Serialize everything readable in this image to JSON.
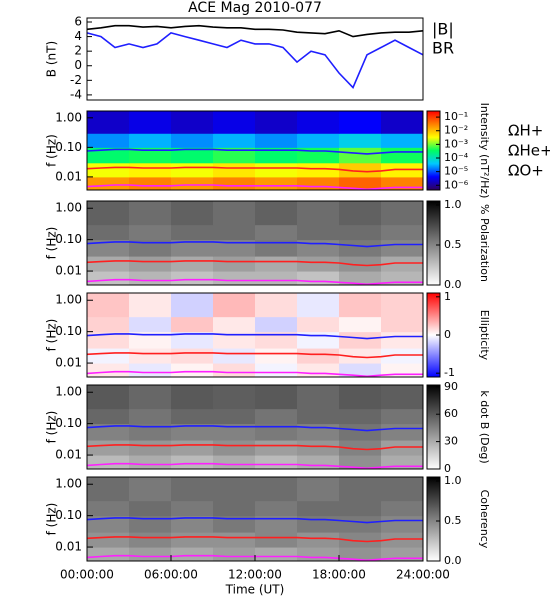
{
  "chart_data": [
    {
      "type": "line",
      "title": "ACE Mag 2010-077",
      "ylabel": "B (nT)",
      "x": [
        0,
        1,
        2,
        3,
        4,
        5,
        6,
        7,
        8,
        9,
        10,
        11,
        12,
        13,
        14,
        15,
        16,
        17,
        18,
        19,
        20,
        21,
        22,
        23,
        24
      ],
      "xlim": [
        0,
        24
      ],
      "ylim": [
        -4.7,
        6.55
      ],
      "yticks": [
        -4,
        -2,
        0,
        2,
        4,
        6
      ],
      "series": [
        {
          "name": "|B|",
          "color": "#000000",
          "values": [
            5.0,
            5.2,
            5.5,
            5.5,
            5.3,
            5.4,
            5.2,
            5.4,
            5.5,
            5.3,
            5.2,
            5.2,
            5.0,
            5.0,
            4.9,
            4.6,
            4.5,
            4.4,
            4.8,
            4.0,
            4.3,
            4.5,
            4.6,
            4.6,
            4.8
          ]
        },
        {
          "name": "BR",
          "color": "#1f1fff",
          "values": [
            4.5,
            4.0,
            2.5,
            3.0,
            2.5,
            3.0,
            4.5,
            4.0,
            3.5,
            3.0,
            2.5,
            3.5,
            3.0,
            3.0,
            2.5,
            0.5,
            2.0,
            1.5,
            -1.0,
            -3.0,
            1.5,
            2.5,
            3.5,
            2.5,
            1.5
          ]
        }
      ]
    },
    {
      "type": "heatmap",
      "ylabel": "f (Hz)",
      "log_y": true,
      "ylim": [
        0.0036,
        1.7
      ],
      "yticks": [
        {
          "value": 1,
          "label": "1.00"
        },
        {
          "value": 0.1,
          "label": "0.10"
        },
        {
          "value": 0.01,
          "label": "0.01"
        }
      ],
      "x_edges": [
        0,
        3,
        6,
        9,
        12,
        15,
        18,
        21,
        24
      ],
      "y_edges": [
        0.0036,
        0.01,
        0.03,
        0.1,
        0.3,
        1.7
      ],
      "z": [
        [
          0.02,
          0.03,
          0.02,
          0.03,
          0.02,
          0.03,
          0.05,
          0.03
        ],
        [
          0.003,
          0.004,
          0.003,
          0.005,
          0.003,
          0.004,
          0.008,
          0.004
        ],
        [
          0.0003,
          0.0004,
          0.0003,
          0.0005,
          0.0003,
          0.0004,
          0.0008,
          0.0004
        ],
        [
          2e-05,
          3e-05,
          2e-05,
          3e-05,
          2e-05,
          3e-05,
          5e-05,
          3e-05
        ],
        [
          2e-06,
          3e-06,
          2e-06,
          3e-06,
          2e-06,
          3e-06,
          4e-06,
          2e-06
        ]
      ],
      "colorbar": {
        "label": "Intensity (nT²/Hz)",
        "log": true,
        "lim": [
          4.5e-07,
          0.28
        ],
        "ticks": [
          {
            "value": 0.1,
            "label": "10⁻¹"
          },
          {
            "value": 0.01,
            "label": "10⁻²"
          },
          {
            "value": 0.001,
            "label": "10⁻³"
          },
          {
            "value": 0.0001,
            "label": "10⁻⁴"
          },
          {
            "value": 1e-05,
            "label": "10⁻⁵"
          },
          {
            "value": 1e-06,
            "label": "10⁻⁶"
          }
        ],
        "colormap": [
          "#30005a",
          "#0000ff",
          "#00c8ff",
          "#00ff60",
          "#ffff00",
          "#ff8000",
          "#ff0000"
        ]
      },
      "series": [
        {
          "name": "ΩH+",
          "color": "#1f1fff",
          "values": [
            0.075,
            0.08,
            0.085,
            0.085,
            0.08,
            0.08,
            0.08,
            0.085,
            0.085,
            0.085,
            0.08,
            0.08,
            0.08,
            0.08,
            0.08,
            0.08,
            0.075,
            0.075,
            0.07,
            0.065,
            0.06,
            0.065,
            0.07,
            0.07,
            0.07
          ]
        },
        {
          "name": "ΩHe+",
          "color": "#ff1f1f",
          "values": [
            0.019,
            0.02,
            0.021,
            0.021,
            0.02,
            0.02,
            0.02,
            0.021,
            0.021,
            0.021,
            0.02,
            0.02,
            0.02,
            0.02,
            0.02,
            0.02,
            0.019,
            0.019,
            0.018,
            0.016,
            0.015,
            0.016,
            0.018,
            0.018,
            0.018
          ]
        },
        {
          "name": "ΩO+",
          "color": "#ff1fff",
          "values": [
            0.0047,
            0.005,
            0.0053,
            0.0053,
            0.005,
            0.005,
            0.005,
            0.0053,
            0.0053,
            0.0053,
            0.005,
            0.005,
            0.005,
            0.005,
            0.005,
            0.005,
            0.0047,
            0.0047,
            0.0044,
            0.0041,
            0.0038,
            0.0041,
            0.0044,
            0.0044,
            0.0044
          ]
        }
      ]
    },
    {
      "type": "heatmap",
      "ylabel": "f (Hz)",
      "log_y": true,
      "ylim": [
        0.0036,
        1.7
      ],
      "yticks": [
        {
          "value": 1,
          "label": "1.00"
        },
        {
          "value": 0.1,
          "label": "0.10"
        },
        {
          "value": 0.01,
          "label": "0.01"
        }
      ],
      "x_edges": [
        0,
        3,
        6,
        9,
        12,
        15,
        18,
        21,
        24
      ],
      "y_edges": [
        0.0036,
        0.01,
        0.03,
        0.1,
        0.3,
        1.7
      ],
      "z": [
        [
          0.25,
          0.3,
          0.25,
          0.3,
          0.3,
          0.25,
          0.35,
          0.3
        ],
        [
          0.35,
          0.4,
          0.35,
          0.4,
          0.35,
          0.4,
          0.45,
          0.35
        ],
        [
          0.5,
          0.55,
          0.5,
          0.5,
          0.55,
          0.5,
          0.55,
          0.5
        ],
        [
          0.6,
          0.55,
          0.6,
          0.6,
          0.55,
          0.6,
          0.6,
          0.55
        ],
        [
          0.65,
          0.6,
          0.65,
          0.6,
          0.65,
          0.6,
          0.65,
          0.6
        ]
      ],
      "colorbar": {
        "label": "% Polarization",
        "log": false,
        "lim": [
          0,
          1.05
        ],
        "ticks": [
          {
            "value": 1,
            "label": "1.0"
          },
          {
            "value": 0.5,
            "label": "0.5"
          },
          {
            "value": 0,
            "label": "0.0"
          }
        ],
        "colormap": [
          "#ffffff",
          "#000000"
        ]
      }
    },
    {
      "type": "heatmap",
      "ylabel": "f (Hz)",
      "log_y": true,
      "ylim": [
        0.0036,
        1.7
      ],
      "yticks": [
        {
          "value": 1,
          "label": "1.00"
        },
        {
          "value": 0.1,
          "label": "0.10"
        },
        {
          "value": 0.01,
          "label": "0.01"
        }
      ],
      "x_edges": [
        0,
        3,
        6,
        9,
        12,
        15,
        18,
        21,
        24
      ],
      "y_edges": [
        0.0036,
        0.01,
        0.03,
        0.1,
        0.3,
        1.7
      ],
      "z": [
        [
          0.1,
          -0.1,
          0.05,
          0.15,
          -0.05,
          0.1,
          -0.15,
          0.05
        ],
        [
          -0.05,
          0.1,
          0.15,
          -0.1,
          0.05,
          0.2,
          0.1,
          -0.05
        ],
        [
          0.15,
          0.05,
          -0.1,
          0.1,
          0.15,
          -0.05,
          0.2,
          0.1
        ],
        [
          0.2,
          -0.15,
          0.25,
          0.1,
          -0.2,
          0.15,
          0.05,
          0.2
        ],
        [
          0.25,
          0.1,
          -0.2,
          0.3,
          0.15,
          -0.1,
          0.25,
          0.2
        ]
      ],
      "colorbar": {
        "label": "Ellipticity",
        "log": false,
        "lim": [
          -1.1,
          1.1
        ],
        "ticks": [
          1,
          0,
          -1
        ],
        "colormap": [
          "#0000ff",
          "#ffffff",
          "#ff0000"
        ]
      }
    },
    {
      "type": "heatmap",
      "ylabel": "f (Hz)",
      "log_y": true,
      "ylim": [
        0.0036,
        1.7
      ],
      "yticks": [
        {
          "value": 1,
          "label": "1.00"
        },
        {
          "value": 0.1,
          "label": "0.10"
        },
        {
          "value": 0.01,
          "label": "0.01"
        }
      ],
      "x_edges": [
        0,
        3,
        6,
        9,
        12,
        15,
        18,
        21,
        24
      ],
      "y_edges": [
        0.0036,
        0.01,
        0.03,
        0.1,
        0.3,
        1.7
      ],
      "z": [
        [
          25,
          30,
          25,
          30,
          25,
          30,
          40,
          30
        ],
        [
          35,
          38,
          35,
          40,
          35,
          38,
          45,
          35
        ],
        [
          45,
          48,
          45,
          45,
          48,
          45,
          50,
          45
        ],
        [
          55,
          50,
          55,
          55,
          50,
          55,
          55,
          50
        ],
        [
          60,
          55,
          60,
          58,
          60,
          55,
          60,
          58
        ]
      ],
      "colorbar": {
        "label": "k dot B (Deg)",
        "log": false,
        "lim": [
          0,
          92
        ],
        "ticks": [
          90,
          60,
          30,
          0
        ],
        "colormap": [
          "#ffffff",
          "#000000"
        ]
      }
    },
    {
      "type": "heatmap",
      "ylabel": "f (Hz)",
      "log_y": true,
      "ylim": [
        0.0036,
        1.7
      ],
      "yticks": [
        {
          "value": 1,
          "label": "1.00"
        },
        {
          "value": 0.1,
          "label": "0.10"
        },
        {
          "value": 0.01,
          "label": "0.01"
        }
      ],
      "x_edges": [
        0,
        3,
        6,
        9,
        12,
        15,
        18,
        21,
        24
      ],
      "y_edges": [
        0.0036,
        0.01,
        0.03,
        0.1,
        0.3,
        1.7
      ],
      "z": [
        [
          0.35,
          0.4,
          0.35,
          0.4,
          0.35,
          0.4,
          0.45,
          0.4
        ],
        [
          0.45,
          0.5,
          0.45,
          0.45,
          0.5,
          0.45,
          0.5,
          0.45
        ],
        [
          0.5,
          0.55,
          0.5,
          0.55,
          0.5,
          0.55,
          0.55,
          0.5
        ],
        [
          0.55,
          0.6,
          0.55,
          0.6,
          0.55,
          0.6,
          0.6,
          0.55
        ],
        [
          0.6,
          0.55,
          0.6,
          0.6,
          0.6,
          0.55,
          0.6,
          0.6
        ]
      ],
      "colorbar": {
        "label": "Coherency",
        "log": false,
        "lim": [
          0,
          1.05
        ],
        "ticks": [
          {
            "value": 1,
            "label": "1.0"
          },
          {
            "value": 0.5,
            "label": "0.5"
          },
          {
            "value": 0,
            "label": "0.0"
          }
        ],
        "colormap": [
          "#ffffff",
          "#000000"
        ]
      },
      "xlabel": "Time (UT)",
      "xticks": [
        {
          "value": 0,
          "label": "00:00:00"
        },
        {
          "value": 6,
          "label": "06:00:00"
        },
        {
          "value": 12,
          "label": "12:00:00"
        },
        {
          "value": 18,
          "label": "18:00:00"
        },
        {
          "value": 24,
          "label": "24:00:00"
        }
      ]
    }
  ]
}
